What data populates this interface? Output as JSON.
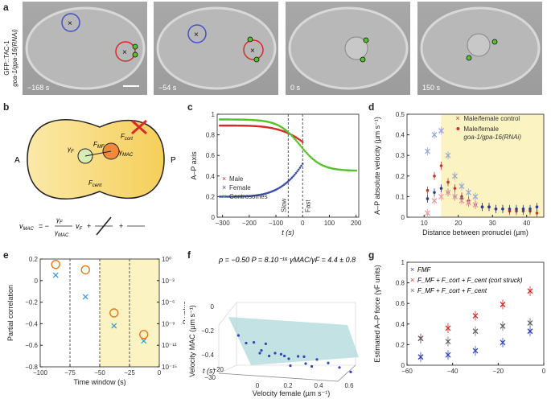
{
  "panel_a": {
    "label": "a",
    "strain_line1": "GFP::TAC-1",
    "strain_line2": "goa-1/gpa-16(RNAi)",
    "frames": [
      {
        "time": "−168 s"
      },
      {
        "time": "−54 s"
      },
      {
        "time": "0 s"
      },
      {
        "time": "150 s"
      }
    ]
  },
  "panel_b": {
    "label": "b",
    "anterior": "A",
    "posterior": "P",
    "f_cort": "F",
    "f_cort_sub": "cort",
    "gamma_f": "γ",
    "gamma_f_sub": "F",
    "gamma_mac": "γ",
    "gamma_mac_sub": "MAC",
    "f_mf": "F",
    "f_mf_sub": "MF",
    "f_cent": "F",
    "f_cent_sub": "cent",
    "eq_lhs": "v",
    "eq_lhs_sub": "MAC",
    "eq_eq": "= −",
    "eq_num1": "γ",
    "eq_num1_sub": "F",
    "eq_den": "γ",
    "eq_den_sub": "MAC",
    "eq_v": "v",
    "eq_v_sub": "F",
    "eq_plus": "+"
  },
  "chart_data": [
    {
      "panel": "c",
      "type": "scatter",
      "ylabel": "A–P axis",
      "xlabel": "t (s)",
      "xlim": [
        -320,
        210
      ],
      "ylim": [
        0,
        1
      ],
      "xticks": [
        -300,
        -200,
        -100,
        0,
        100,
        200
      ],
      "yticks": [
        0,
        0.2,
        0.4,
        0.6,
        0.8,
        1
      ],
      "annotations": [
        "Slow",
        "Fast"
      ],
      "vlines": [
        -54,
        0
      ],
      "series": [
        {
          "name": "Male",
          "color": "#d62b2b",
          "x_range": [
            -310,
            0
          ],
          "y_start": 0.89,
          "y_end": 0.73
        },
        {
          "name": "Female",
          "color": "#3b4fa8",
          "x_range": [
            -310,
            0
          ],
          "y_start": 0.2,
          "y_end": 0.52
        },
        {
          "name": "Centrosomes",
          "color": "#55c12b",
          "x_range": [
            -310,
            200
          ],
          "y_start": 0.95,
          "y_end": 0.45
        }
      ]
    },
    {
      "panel": "d",
      "type": "scatter",
      "ylabel": "A–P absolute velocity (µm s⁻¹)",
      "xlabel": "Distance between pronuclei (µm)",
      "xlim": [
        5,
        45
      ],
      "ylim": [
        0,
        0.5
      ],
      "xticks": [
        10,
        20,
        30,
        40
      ],
      "yticks": [
        0,
        0.1,
        0.2,
        0.3,
        0.4,
        0.5
      ],
      "legend": [
        "Male/female control",
        "Male/female",
        "goa-1/gpa-16(RNAi)"
      ],
      "shaded_from": 15,
      "series": [
        {
          "name": "Male RNAi",
          "color": "#c0392b",
          "x": [
            11,
            13,
            15,
            17,
            19,
            21,
            23,
            25,
            27,
            29,
            31,
            33,
            35,
            37,
            39,
            41,
            43
          ],
          "y": [
            0.13,
            0.2,
            0.25,
            0.17,
            0.14,
            0.1,
            0.08,
            0.06,
            0.05,
            0.05,
            0.04,
            0.04,
            0.03,
            0.03,
            0.03,
            0.03,
            0.02
          ]
        },
        {
          "name": "Female RNAi",
          "color": "#2c3e8c",
          "x": [
            11,
            13,
            15,
            17,
            19,
            21,
            23,
            25,
            27,
            29,
            31,
            33,
            35,
            37,
            39,
            41,
            43
          ],
          "y": [
            0.09,
            0.12,
            0.14,
            0.12,
            0.1,
            0.09,
            0.07,
            0.06,
            0.05,
            0.05,
            0.04,
            0.04,
            0.04,
            0.04,
            0.04,
            0.04,
            0.05
          ]
        },
        {
          "name": "Male control",
          "color": "#e8a0a0",
          "x": [
            11,
            13,
            15,
            17,
            19,
            21,
            23,
            25
          ],
          "y": [
            0.02,
            0.08,
            0.1,
            0.12,
            0.1,
            0.08,
            0.07,
            0.06
          ]
        },
        {
          "name": "Female control",
          "color": "#9aa7d8",
          "x": [
            11,
            13,
            15,
            17,
            19,
            21,
            23,
            25
          ],
          "y": [
            0.32,
            0.4,
            0.42,
            0.3,
            0.2,
            0.15,
            0.12,
            0.1
          ]
        }
      ]
    },
    {
      "panel": "e",
      "type": "scatter",
      "ylabel_left": "Partial correlation",
      "ylabel_right": "P value",
      "xlabel": "Time window (s)",
      "xlim": [
        -100,
        0
      ],
      "ylim_left": [
        -0.8,
        0.2
      ],
      "xticks": [
        -100,
        -75,
        -50,
        -25,
        0
      ],
      "yticks_left": [
        -0.8,
        -0.6,
        -0.4,
        -0.2,
        0,
        0.2
      ],
      "yticks_right": [
        "10⁰",
        "10⁻³",
        "10⁻⁶",
        "10⁻⁹",
        "10⁻¹²",
        "10⁻¹⁵"
      ],
      "series": [
        {
          "name": "Partial correlation",
          "color": "#3a9ad9",
          "x": [
            -87,
            -62,
            -38,
            -13
          ],
          "y": [
            0.05,
            -0.15,
            -0.42,
            -0.56
          ]
        },
        {
          "name": "P value",
          "color": "#e07a1f",
          "x": [
            -87,
            -62,
            -38,
            -13
          ],
          "y": [
            0.15,
            0.1,
            -0.3,
            -0.5
          ]
        }
      ]
    },
    {
      "panel": "f",
      "type": "scatter",
      "stats": "ρ = −0.50   P = 8.10⁻¹⁶   γMAC/γF = 4.4 ± 0.8",
      "zlabel": "Velocity MAC (µm s⁻¹)",
      "xlabel": "Velocity female (µm s⁻¹)",
      "ylabel": "t (s)",
      "zticks": [
        0,
        -0.2,
        -0.4
      ],
      "xticks": [
        0,
        0.2,
        0.4,
        0.6
      ],
      "yticks": [
        -20,
        -30
      ],
      "series": [
        {
          "name": "points",
          "color": "#3346b5",
          "x": [
            0.02,
            0.05,
            0.08,
            0.1,
            0.12,
            0.15,
            0.18,
            0.2,
            0.22,
            0.25,
            0.28,
            0.3,
            0.33,
            0.35,
            0.38,
            0.4,
            0.45,
            0.5,
            0.55,
            0.6
          ],
          "y": [
            -0.1,
            -0.15,
            -0.12,
            -0.2,
            -0.18,
            -0.22,
            -0.25,
            -0.2,
            -0.28,
            -0.3,
            -0.25,
            -0.32,
            -0.3,
            -0.28,
            -0.35,
            -0.3,
            -0.33,
            -0.34,
            -0.36,
            -0.38
          ]
        }
      ]
    },
    {
      "panel": "g",
      "type": "scatter",
      "ylabel": "Estimated A–P force (γF units)",
      "xlabel": "",
      "xlim": [
        -60,
        0
      ],
      "ylim": [
        0,
        1
      ],
      "xticks": [
        -60,
        -40,
        -20,
        0
      ],
      "yticks": [
        0,
        0.2,
        0.4,
        0.6,
        0.8,
        1
      ],
      "legend": [
        "F_MF",
        "F_MF + F_cort + F_cent (cort struck)",
        "F_MF + F_cort + F_cent"
      ],
      "series": [
        {
          "name": "F_MF",
          "color": "#3346b5",
          "x": [
            -54,
            -42,
            -30,
            -18,
            -6
          ],
          "y": [
            0.08,
            0.1,
            0.14,
            0.22,
            0.33
          ]
        },
        {
          "name": "F_MF + F_cent",
          "color": "#d62b2b",
          "x": [
            -54,
            -42,
            -30,
            -18,
            -6
          ],
          "y": [
            0.26,
            0.36,
            0.48,
            0.59,
            0.72
          ]
        },
        {
          "name": "F_MF + F_cort + F_cent",
          "color": "#666666",
          "x": [
            -54,
            -42,
            -30,
            -18,
            -6
          ],
          "y": [
            0.26,
            0.23,
            0.33,
            0.38,
            0.41
          ]
        }
      ]
    }
  ],
  "panels": {
    "c_label": "c",
    "d_label": "d",
    "e_label": "e",
    "f_label": "f",
    "g_label": "g",
    "c_legend": [
      "Male",
      "Female",
      "Centrosomes"
    ],
    "d_legend_1": "Male/female control",
    "d_legend_2": "Male/female",
    "d_legend_3": "goa-1/gpa-16(RNAi)",
    "g_leg1": "F",
    "g_leg1_sub": "MF"
  }
}
